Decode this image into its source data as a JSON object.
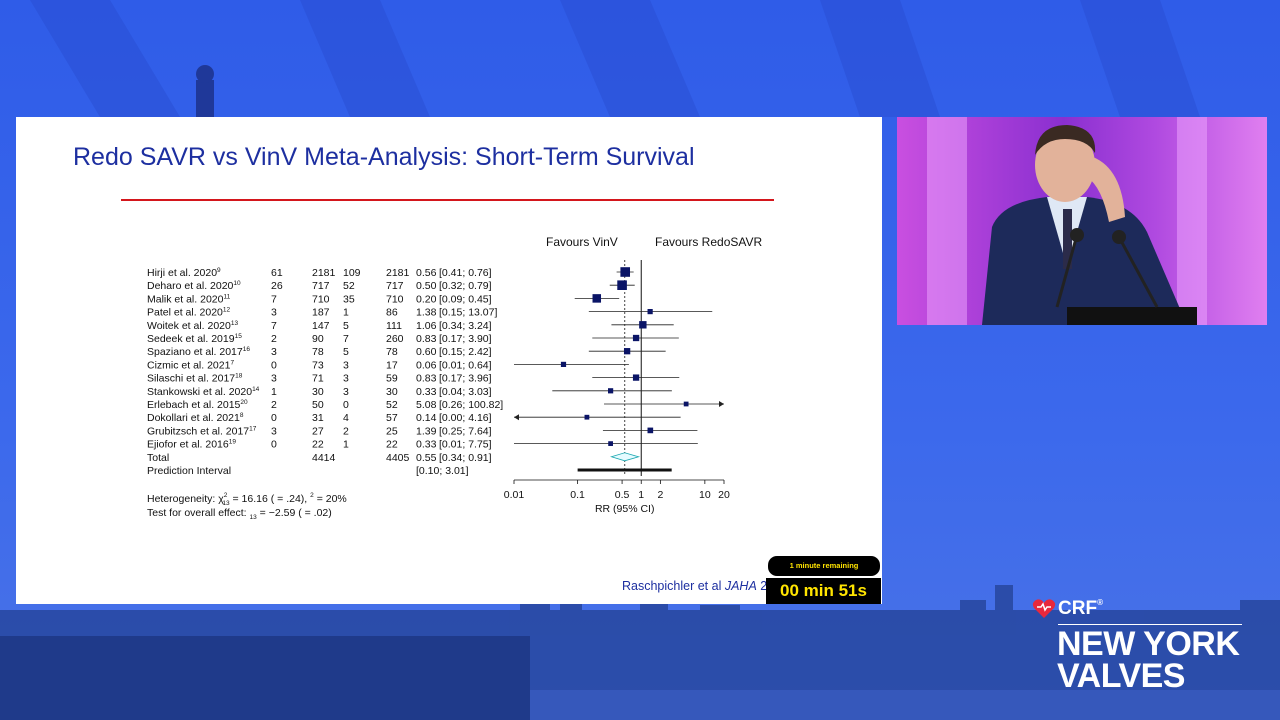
{
  "slide": {
    "title": "Redo SAVR vs VinV Meta-Analysis: Short-Term Survival",
    "header_left": "Favours VinV",
    "header_right": "Favours RedoSAVR",
    "studies": [
      {
        "name": "Hirji et al. 2020",
        "sup": "9",
        "e1": "61",
        "n1": "2181",
        "e2": "109",
        "n2": "2181",
        "rr": "0.56",
        "ci": "[0.41;  0.76]"
      },
      {
        "name": "Deharo et al. 2020",
        "sup": "10",
        "e1": "26",
        "n1": "717",
        "e2": "52",
        "n2": "717",
        "rr": "0.50",
        "ci": "[0.32;  0.79]"
      },
      {
        "name": "Malik et al. 2020",
        "sup": "11",
        "e1": "7",
        "n1": "710",
        "e2": "35",
        "n2": "710",
        "rr": "0.20",
        "ci": "[0.09;  0.45]"
      },
      {
        "name": "Patel et al. 2020",
        "sup": "12",
        "e1": "3",
        "n1": "187",
        "e2": "1",
        "n2": "86",
        "rr": "1.38",
        "ci": "[0.15; 13.07]"
      },
      {
        "name": "Woitek et al. 2020",
        "sup": "13",
        "e1": "7",
        "n1": "147",
        "e2": "5",
        "n2": "111",
        "rr": "1.06",
        "ci": "[0.34;  3.24]"
      },
      {
        "name": "Sedeek et al. 2019",
        "sup": "15",
        "e1": "2",
        "n1": "90",
        "e2": "7",
        "n2": "260",
        "rr": "0.83",
        "ci": "[0.17;  3.90]"
      },
      {
        "name": "Spaziano et al. 2017",
        "sup": "16",
        "e1": "3",
        "n1": "78",
        "e2": "5",
        "n2": "78",
        "rr": "0.60",
        "ci": "[0.15;  2.42]"
      },
      {
        "name": "Cizmic et al. 2021",
        "sup": "7",
        "e1": "0",
        "n1": "73",
        "e2": "3",
        "n2": "17",
        "rr": "0.06",
        "ci": "[0.01;  0.64]"
      },
      {
        "name": "Silaschi et al. 2017",
        "sup": "18",
        "e1": "3",
        "n1": "71",
        "e2": "3",
        "n2": "59",
        "rr": "0.83",
        "ci": "[0.17;  3.96]"
      },
      {
        "name": "Stankowski et al. 2020",
        "sup": "14",
        "e1": "1",
        "n1": "30",
        "e2": "3",
        "n2": "30",
        "rr": "0.33",
        "ci": "[0.04;  3.03]"
      },
      {
        "name": "Erlebach et al. 2015",
        "sup": "20",
        "e1": "2",
        "n1": "50",
        "e2": "0",
        "n2": "52",
        "rr": "5.08",
        "ci": "[0.26; 100.82]"
      },
      {
        "name": "Dokollari et al. 2021",
        "sup": "8",
        "e1": "0",
        "n1": "31",
        "e2": "4",
        "n2": "57",
        "rr": "0.14",
        "ci": "[0.00;  4.16]"
      },
      {
        "name": "Grubitzsch et al. 2017",
        "sup": "17",
        "e1": "3",
        "n1": "27",
        "e2": "2",
        "n2": "25",
        "rr": "1.39",
        "ci": "[0.25;  7.64]"
      },
      {
        "name": "Ejiofor et al. 2016",
        "sup": "19",
        "e1": "0",
        "n1": "22",
        "e2": "1",
        "n2": "22",
        "rr": "0.33",
        "ci": "[0.01;  7.75]"
      }
    ],
    "total": {
      "label": "Total",
      "n1": "4414",
      "n2": "4405",
      "rr": "0.55",
      "ci": "[0.34;  0.91]"
    },
    "prediction": {
      "label": "Prediction Interval",
      "ci": "[0.10;  3.01]"
    },
    "heterogeneity_a": "Heterogeneity: ",
    "heterogeneity_chi": "χ",
    "heterogeneity_sup": "2",
    "heterogeneity_sub": "13",
    "heterogeneity_b": " = 16.16 (    = .24),    ",
    "heterogeneity_i2": "2",
    "heterogeneity_c": " = 20%",
    "overall_a": "Test for overall effect:  ",
    "overall_sub": "13",
    "overall_b": " = −2.59 (    = .02)",
    "axis_ticks": [
      "0.01",
      "0.1",
      "0.5",
      "1",
      "2",
      "10",
      "20"
    ],
    "axis_label": "RR (95% CI)",
    "citation_a": "Raschpichler et al ",
    "citation_journal": "JAHA",
    "citation_b": " 2"
  },
  "chart_data": {
    "type": "forest",
    "xlabel": "RR (95% CI)",
    "xscale": "log",
    "xlim": [
      0.01,
      20
    ],
    "x_ticks": [
      0.01,
      0.1,
      0.5,
      1,
      2,
      10,
      20
    ],
    "reference_line": 1,
    "pooled_line": 0.55,
    "studies": [
      {
        "name": "Hirji et al. 2020",
        "rr": 0.56,
        "lo": 0.41,
        "hi": 0.76,
        "weight": 3
      },
      {
        "name": "Deharo et al. 2020",
        "rr": 0.5,
        "lo": 0.32,
        "hi": 0.79,
        "weight": 3
      },
      {
        "name": "Malik et al. 2020",
        "rr": 0.2,
        "lo": 0.09,
        "hi": 0.45,
        "weight": 2.5
      },
      {
        "name": "Patel et al. 2020",
        "rr": 1.38,
        "lo": 0.15,
        "hi": 13.07,
        "weight": 1
      },
      {
        "name": "Woitek et al. 2020",
        "rr": 1.06,
        "lo": 0.34,
        "hi": 3.24,
        "weight": 2
      },
      {
        "name": "Sedeek et al. 2019",
        "rr": 0.83,
        "lo": 0.17,
        "hi": 3.9,
        "weight": 1.5
      },
      {
        "name": "Spaziano et al. 2017",
        "rr": 0.6,
        "lo": 0.15,
        "hi": 2.42,
        "weight": 1.5
      },
      {
        "name": "Cizmic et al. 2021",
        "rr": 0.06,
        "lo": 0.01,
        "hi": 0.64,
        "weight": 1
      },
      {
        "name": "Silaschi et al. 2017",
        "rr": 0.83,
        "lo": 0.17,
        "hi": 3.96,
        "weight": 1.5
      },
      {
        "name": "Stankowski et al. 2020",
        "rr": 0.33,
        "lo": 0.04,
        "hi": 3.03,
        "weight": 1
      },
      {
        "name": "Erlebach et al. 2015",
        "rr": 5.08,
        "lo": 0.26,
        "hi": 100.82,
        "weight": 0.8
      },
      {
        "name": "Dokollari et al. 2021",
        "rr": 0.14,
        "lo": 0.0,
        "hi": 4.16,
        "weight": 0.8
      },
      {
        "name": "Grubitzsch et al. 2017",
        "rr": 1.39,
        "lo": 0.25,
        "hi": 7.64,
        "weight": 1.2
      },
      {
        "name": "Ejiofor et al. 2016",
        "rr": 0.33,
        "lo": 0.01,
        "hi": 7.75,
        "weight": 0.8
      }
    ],
    "total": {
      "rr": 0.55,
      "lo": 0.34,
      "hi": 0.91
    },
    "prediction_interval": {
      "lo": 0.1,
      "hi": 3.01
    }
  },
  "timer": {
    "notice": "1 minute remaining",
    "time": "00 min 51s"
  },
  "brand": {
    "crf": "CRF",
    "reg": "®",
    "line1": "NEW YORK",
    "line2": "VALVES"
  },
  "colors": {
    "stage_blue": "#3a64e6",
    "title_blue": "#1d2fa0",
    "title_rule_red": "#d4161c",
    "marker_navy": "#0a1466",
    "timer_yellow": "#ffe400",
    "brand_red": "#e8283c"
  }
}
